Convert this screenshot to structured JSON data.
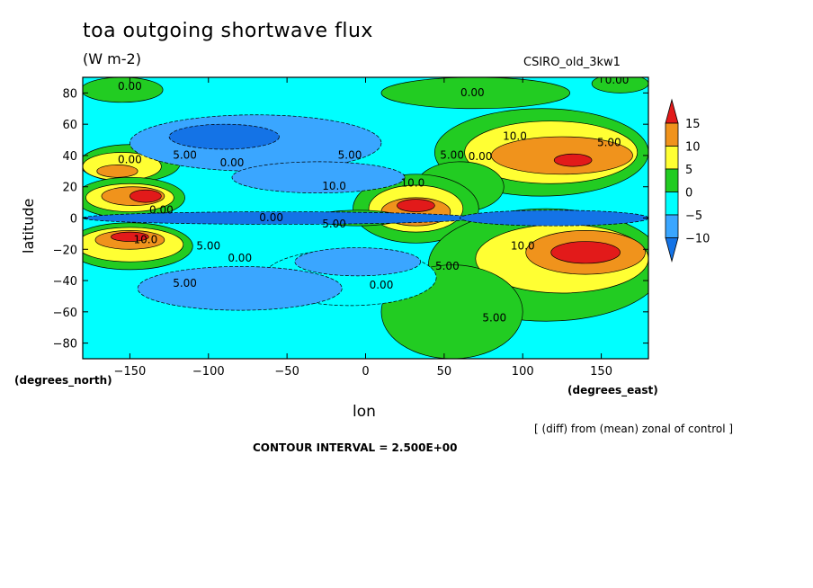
{
  "header": {
    "title": "toa outgoing shortwave flux",
    "units": "(W m-2)",
    "model": "CSIRO_old_3kw1"
  },
  "axes": {
    "xlabel": "lon",
    "ylabel": "latitude",
    "x_unit": "(degrees_east)",
    "y_unit": "(degrees_north)"
  },
  "footer": {
    "note": "[ (diff) from (mean) zonal of control ]",
    "contour_interval": "CONTOUR INTERVAL = 2.500E+00"
  },
  "chart_data": {
    "type": "heatmap",
    "title": "toa outgoing shortwave flux",
    "xlabel": "lon",
    "ylabel": "latitude",
    "xlim": [
      -180,
      180
    ],
    "ylim": [
      -90,
      90
    ],
    "xticks": [
      -150,
      -100,
      -50,
      0,
      50,
      100,
      150
    ],
    "yticks": [
      -80,
      -60,
      -40,
      -20,
      0,
      20,
      40,
      60,
      80
    ],
    "contour_interval": 2.5,
    "colorbar": {
      "labels": [
        15,
        10,
        5,
        0,
        -5,
        -10
      ],
      "levels": [
        {
          "range": ">15",
          "color": "#e21a1a"
        },
        {
          "range": "10 to 15",
          "color": "#f0931c"
        },
        {
          "range": "5 to 10",
          "color": "#ffff33"
        },
        {
          "range": "0 to 5",
          "color": "#22cc22"
        },
        {
          "range": "-5 to 0",
          "color": "#00ffff"
        },
        {
          "range": "-10 to -5",
          "color": "#3aa6ff"
        },
        {
          "range": "<-10",
          "color": "#1473e6"
        }
      ]
    },
    "base_color": "#00ffff",
    "regions": [
      {
        "level": "0 to 5",
        "lon": -155,
        "lat": 82,
        "rx": 26,
        "ry": 8
      },
      {
        "level": "0 to 5",
        "lon": 70,
        "lat": 80,
        "rx": 60,
        "ry": 10
      },
      {
        "level": "0 to 5",
        "lon": 162,
        "lat": 86,
        "rx": 18,
        "ry": 6
      },
      {
        "level": "0 to 5",
        "lon": -150,
        "lat": 35,
        "rx": 32,
        "ry": 12
      },
      {
        "level": "5 to 10",
        "lon": -155,
        "lat": 33,
        "rx": 25,
        "ry": 9
      },
      {
        "level": "10 to 15",
        "lon": -158,
        "lat": 30,
        "rx": 13,
        "ry": 4
      },
      {
        "level": "0 to 5",
        "lon": 112,
        "lat": 42,
        "rx": 68,
        "ry": 28
      },
      {
        "level": "5 to 10",
        "lon": 118,
        "lat": 42,
        "rx": 55,
        "ry": 20
      },
      {
        "level": "10 to 15",
        "lon": 125,
        "lat": 40,
        "rx": 45,
        "ry": 12
      },
      {
        "level": ">15",
        "lon": 132,
        "lat": 37,
        "rx": 12,
        "ry": 4
      },
      {
        "level": "0 to 5",
        "lon": 60,
        "lat": 20,
        "rx": 28,
        "ry": 16
      },
      {
        "level": "0 to 5",
        "lon": 32,
        "lat": 6,
        "rx": 40,
        "ry": 22
      },
      {
        "level": "5 to 10",
        "lon": 32,
        "lat": 6,
        "rx": 30,
        "ry": 15
      },
      {
        "level": "10 to 15",
        "lon": 32,
        "lat": 4,
        "rx": 22,
        "ry": 9
      },
      {
        "level": ">15",
        "lon": 32,
        "lat": 8,
        "rx": 12,
        "ry": 4
      },
      {
        "level": "0 to 5",
        "lon": -150,
        "lat": 13,
        "rx": 35,
        "ry": 13
      },
      {
        "level": "5 to 10",
        "lon": -150,
        "lat": 13,
        "rx": 28,
        "ry": 9
      },
      {
        "level": "10 to 15",
        "lon": -148,
        "lat": 14,
        "rx": 20,
        "ry": 6
      },
      {
        "level": ">15",
        "lon": -140,
        "lat": 14,
        "rx": 10,
        "ry": 4
      },
      {
        "level": "0 to 5",
        "lon": -150,
        "lat": -18,
        "rx": 40,
        "ry": 15
      },
      {
        "level": "5 to 10",
        "lon": -150,
        "lat": -17,
        "rx": 34,
        "ry": 11
      },
      {
        "level": "10 to 15",
        "lon": -150,
        "lat": -14,
        "rx": 22,
        "ry": 6
      },
      {
        "level": ">15",
        "lon": -150,
        "lat": -12,
        "rx": 12,
        "ry": 3
      },
      {
        "level": "0 to 5",
        "lon": 115,
        "lat": -30,
        "rx": 75,
        "ry": 36
      },
      {
        "level": "5 to 10",
        "lon": 125,
        "lat": -26,
        "rx": 55,
        "ry": 22
      },
      {
        "level": "10 to 15",
        "lon": 140,
        "lat": -22,
        "rx": 38,
        "ry": 14
      },
      {
        "level": ">15",
        "lon": 140,
        "lat": -22,
        "rx": 22,
        "ry": 7
      },
      {
        "level": "0 to 5",
        "lon": 55,
        "lat": -60,
        "rx": 45,
        "ry": 30
      },
      {
        "level": "0 to 5",
        "lon": -5,
        "lat": 0,
        "rx": 28,
        "ry": 5
      },
      {
        "level": "-5 to 0",
        "lon": -10,
        "lat": -38,
        "rx": 55,
        "ry": 18
      },
      {
        "level": "-10 to -5",
        "lon": -70,
        "lat": 48,
        "rx": 80,
        "ry": 18
      },
      {
        "level": "<-10",
        "lon": -90,
        "lat": 52,
        "rx": 35,
        "ry": 8
      },
      {
        "level": "-10 to -5",
        "lon": -80,
        "lat": -45,
        "rx": 65,
        "ry": 14
      },
      {
        "level": "-10 to -5",
        "lon": -30,
        "lat": 26,
        "rx": 55,
        "ry": 10
      },
      {
        "level": "-10 to -5",
        "lon": -5,
        "lat": -28,
        "rx": 40,
        "ry": 9
      },
      {
        "level": "<-10",
        "lon": -55,
        "lat": 0,
        "rx": 125,
        "ry": 4
      },
      {
        "level": "<-10",
        "lon": 120,
        "lat": 0,
        "rx": 60,
        "ry": 5
      }
    ],
    "contour_labels": [
      "0.00",
      "0.00",
      "0.00",
      "10.0",
      "5.00",
      "5.00",
      "0.00",
      "5.00",
      "0.00",
      "10.0",
      "0.00",
      "5.00",
      "10.0",
      "10.0",
      "5.00",
      "0.00",
      "10.0",
      "5.00",
      "0.00",
      "5.00",
      "5.00",
      "5.00",
      "0.00",
      "0.00"
    ]
  }
}
